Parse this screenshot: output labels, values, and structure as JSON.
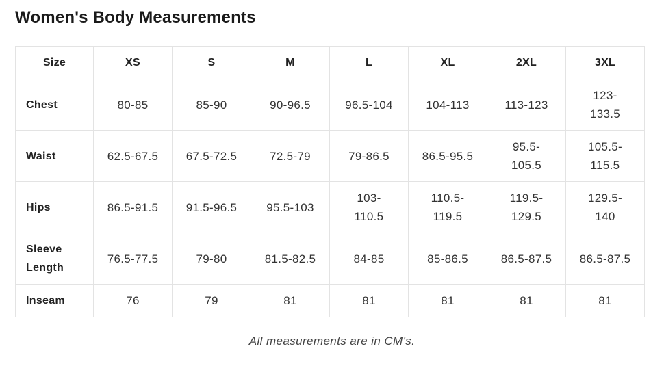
{
  "title": "Women's Body Measurements",
  "table": {
    "headers": [
      "Size",
      "XS",
      "S",
      "M",
      "L",
      "XL",
      "2XL",
      "3XL"
    ],
    "rows": [
      {
        "label": "Chest",
        "values": [
          "80-85",
          "85-90",
          "90-96.5",
          "96.5-104",
          "104-113",
          "113-123",
          "123-133.5"
        ]
      },
      {
        "label": "Waist",
        "values": [
          "62.5-67.5",
          "67.5-72.5",
          "72.5-79",
          "79-86.5",
          "86.5-95.5",
          "95.5-105.5",
          "105.5-115.5"
        ]
      },
      {
        "label": "Hips",
        "values": [
          "86.5-91.5",
          "91.5-96.5",
          "95.5-103",
          "103-110.5",
          "110.5-119.5",
          "119.5-129.5",
          "129.5-140"
        ]
      },
      {
        "label": "Sleeve Length",
        "values": [
          "76.5-77.5",
          "79-80",
          "81.5-82.5",
          "84-85",
          "85-86.5",
          "86.5-87.5",
          "86.5-87.5"
        ]
      },
      {
        "label": "Inseam",
        "values": [
          "76",
          "79",
          "81",
          "81",
          "81",
          "81",
          "81"
        ]
      }
    ]
  },
  "note": "All measurements are in CM's."
}
